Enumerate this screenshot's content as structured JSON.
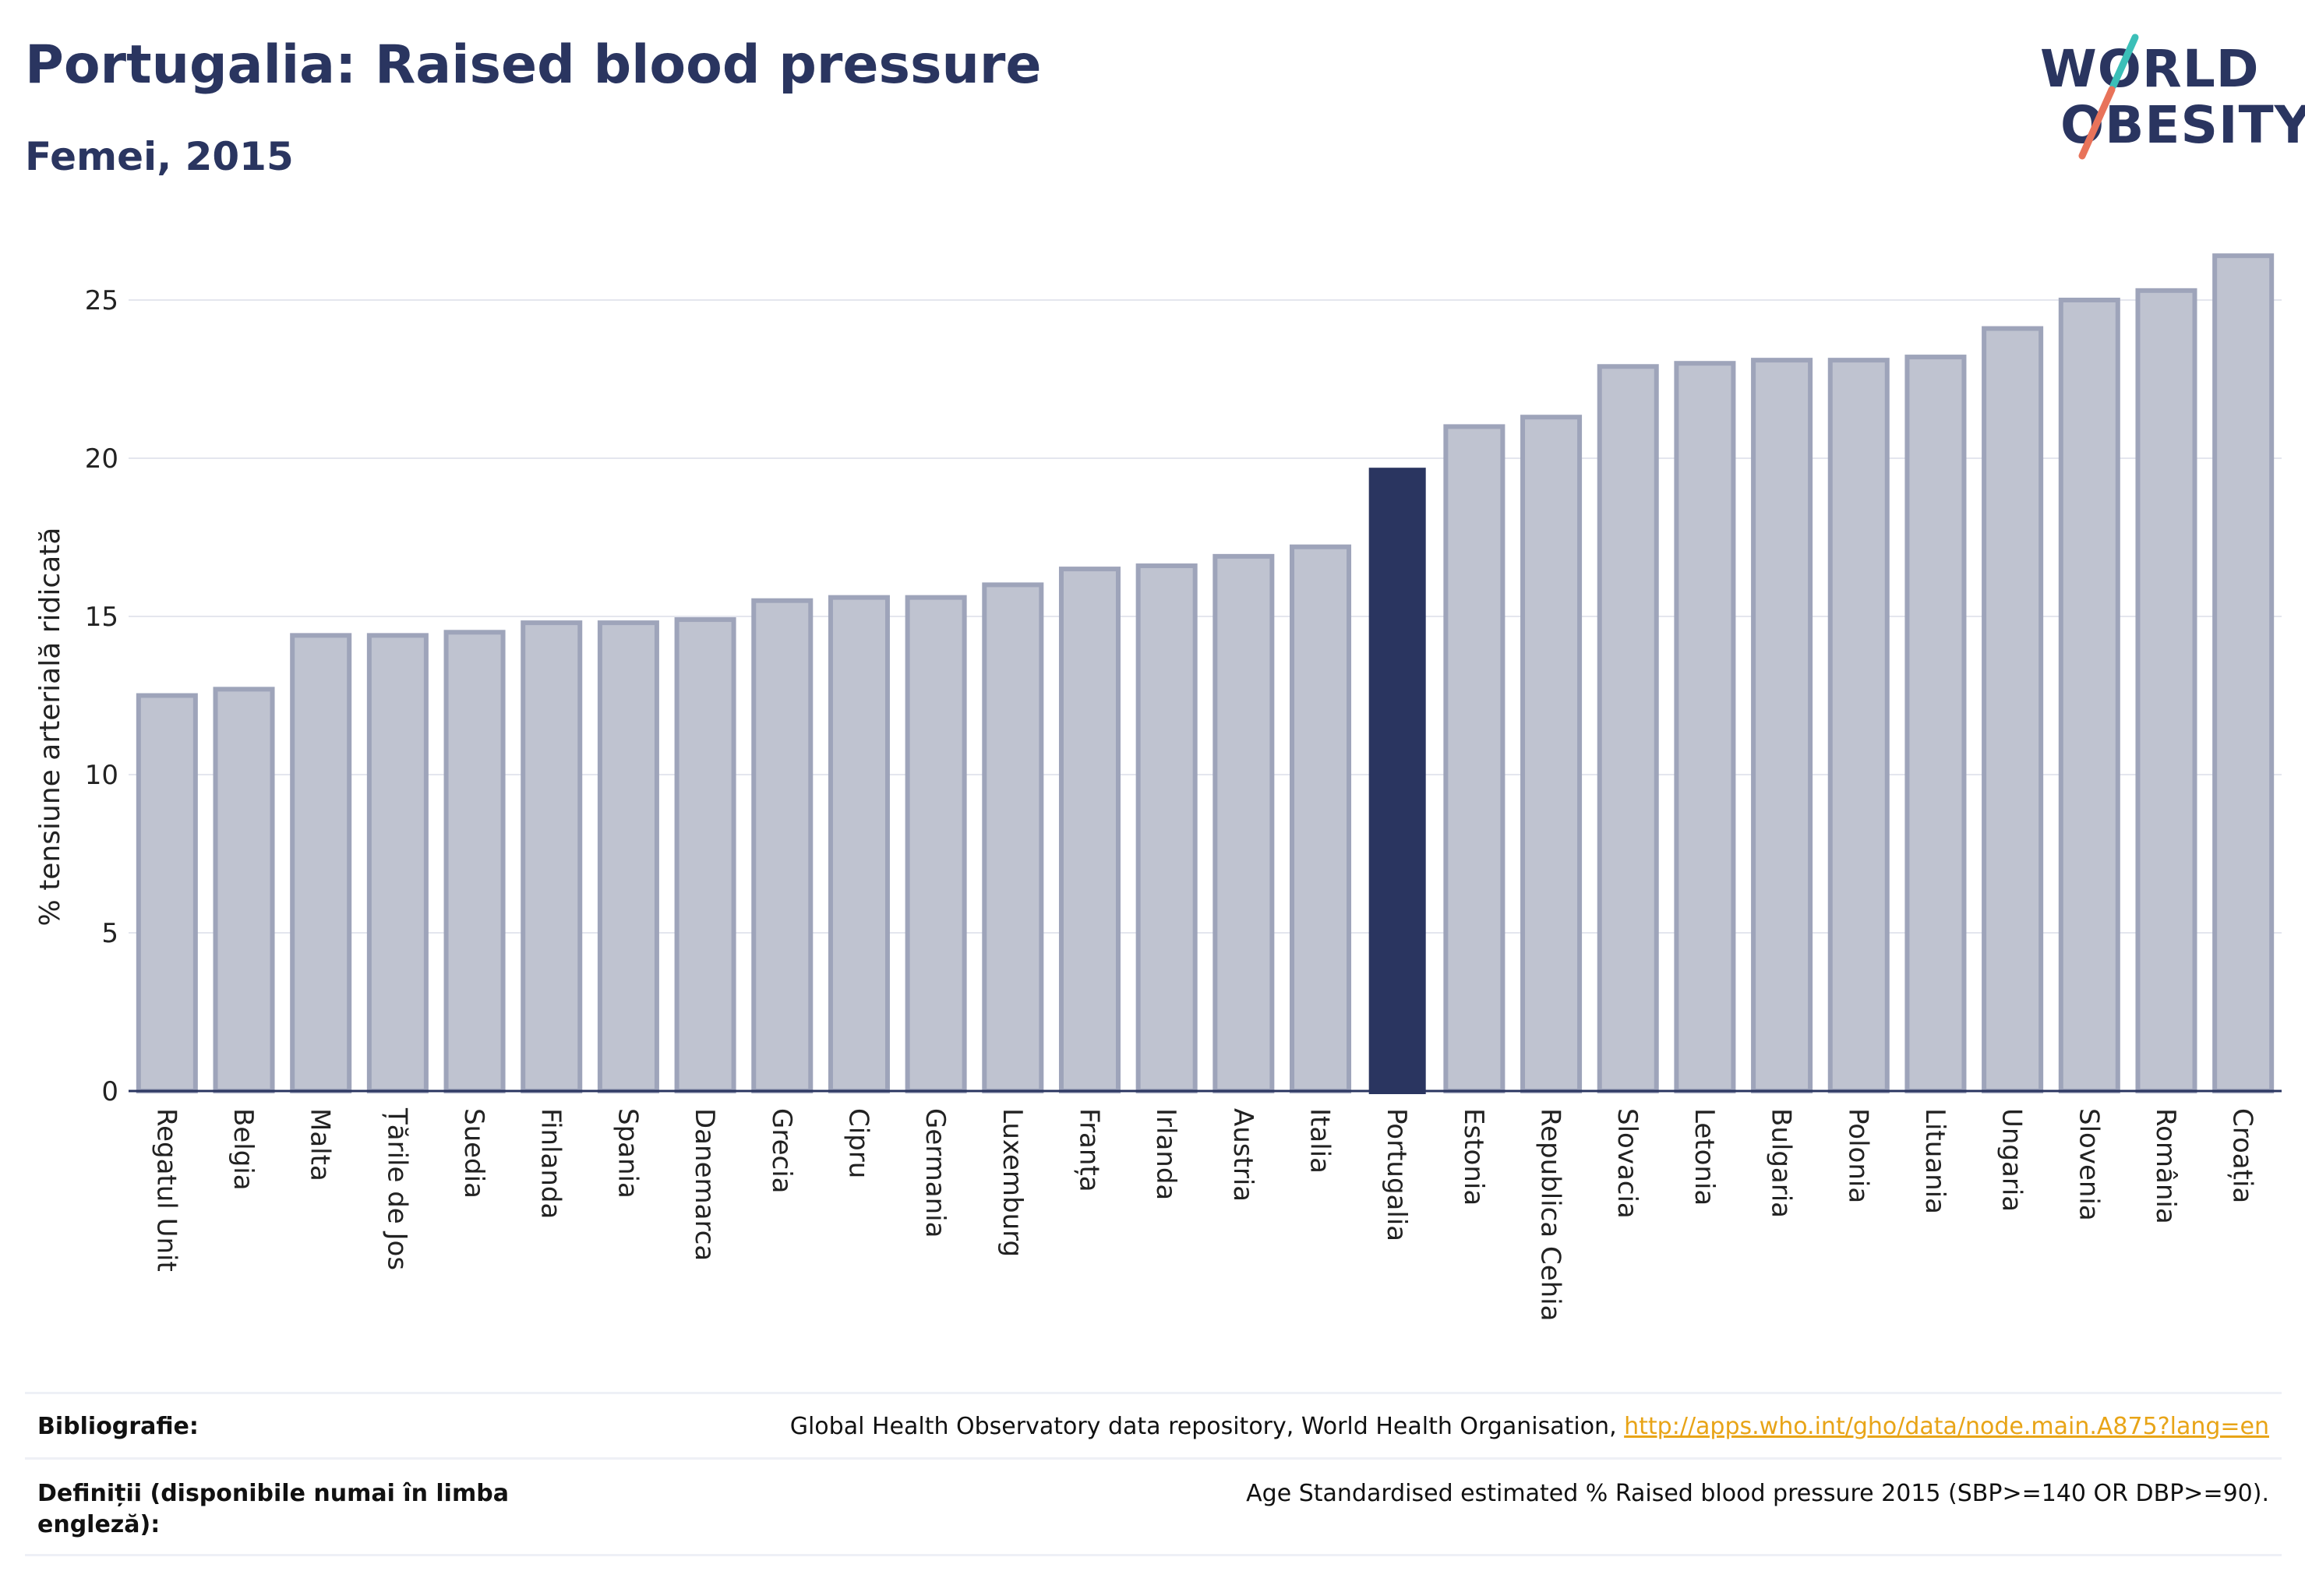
{
  "header": {
    "title": "Portugalia: Raised blood pressure",
    "subtitle": "Femei, 2015"
  },
  "logo": {
    "line1": "WORLD",
    "line2": "OBESITY",
    "accent_teal": "#3bbfb8",
    "accent_coral": "#e8735a"
  },
  "colors": {
    "bar": "#bfc3d0",
    "bar_border": "#9ea4ba",
    "highlight": "#2a3560",
    "text": "#2a3560",
    "link": "#e8a417"
  },
  "chart_data": {
    "type": "bar",
    "ylabel": "% tensiune arterială ridicată",
    "xlabel": "",
    "ylim": [
      0,
      27
    ],
    "yticks": [
      0,
      5,
      10,
      15,
      20,
      25
    ],
    "grid": true,
    "highlight_category": "Portugalia",
    "categories": [
      "Regatul Unit",
      "Belgia",
      "Malta",
      "Țările de Jos",
      "Suedia",
      "Finlanda",
      "Spania",
      "Danemarca",
      "Grecia",
      "Cipru",
      "Germania",
      "Luxemburg",
      "Franța",
      "Irlanda",
      "Austria",
      "Italia",
      "Portugalia",
      "Estonia",
      "Republica Cehia",
      "Slovacia",
      "Letonia",
      "Bulgaria",
      "Polonia",
      "Lituania",
      "Ungaria",
      "Slovenia",
      "România",
      "Croația"
    ],
    "values": [
      12.5,
      12.7,
      14.4,
      14.4,
      14.5,
      14.8,
      14.8,
      14.9,
      15.5,
      15.6,
      15.6,
      16.0,
      16.5,
      16.6,
      16.9,
      17.2,
      19.7,
      21.0,
      21.3,
      22.9,
      23.0,
      23.1,
      23.1,
      23.2,
      24.1,
      25.0,
      25.3,
      26.4
    ]
  },
  "footer": {
    "bibliography_label": "Bibliografie:",
    "bibliography_text": "Global Health Observatory data repository, World Health Organisation, ",
    "bibliography_link": "http://apps.who.int/gho/data/node.main.A875?lang=en",
    "definitions_label": "Definiții (disponibile numai în limba engleză):",
    "definitions_text": "Age Standardised estimated % Raised blood pressure 2015 (SBP>=140 OR DBP>=90)."
  }
}
